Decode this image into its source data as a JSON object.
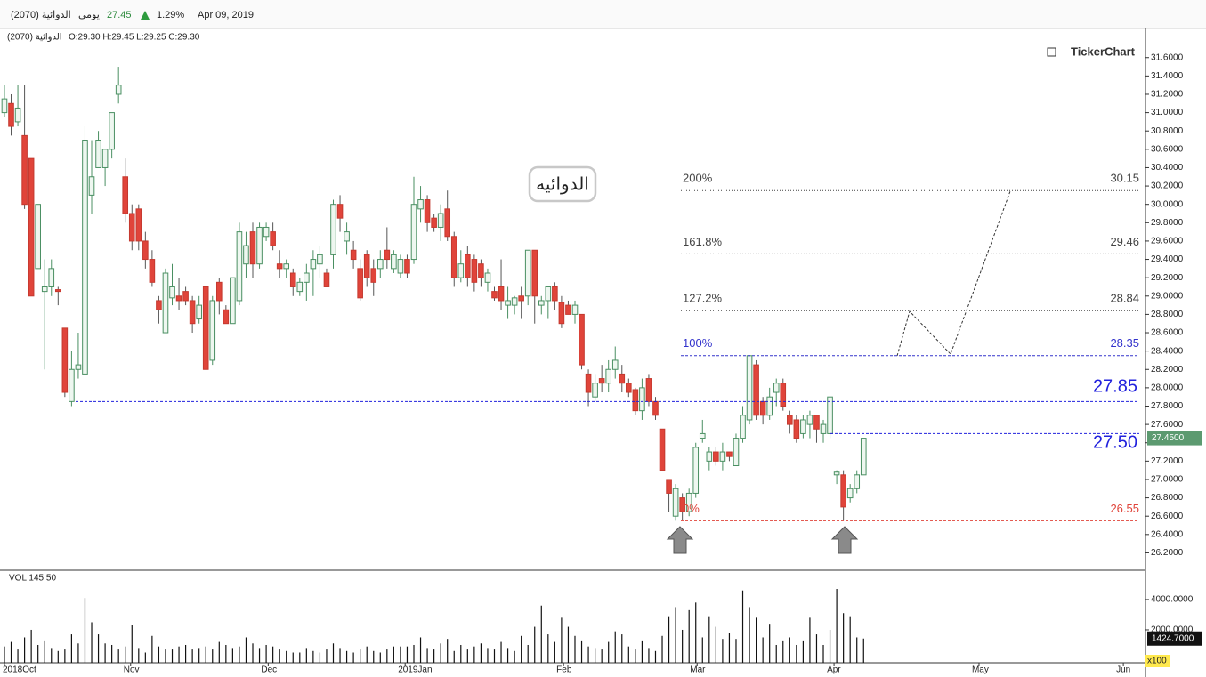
{
  "header": {
    "symbol": "الدوائية (2070)",
    "period": "يومي",
    "last": "27.45",
    "change": "1.29%",
    "date": "Apr 09, 2019"
  },
  "chart_data": {
    "type": "candlestick",
    "legend_name": "الدوائية (2070)",
    "legend_ohlc": "O:29.30 H:29.45 L:29.25 C:29.30",
    "brand": "TickerChart",
    "callout": "الدوائيه",
    "up_color": "#4a8f62",
    "down_color": "#e0443a",
    "xlim": [
      -0.66,
      170
    ],
    "xticks": [
      {
        "value": 0,
        "label": "2018Oct"
      },
      {
        "value": 18.8,
        "label": "Nov"
      },
      {
        "value": 39.3,
        "label": "Dec"
      },
      {
        "value": 59.7,
        "label": "2019Jan"
      },
      {
        "value": 83.3,
        "label": "Feb"
      },
      {
        "value": 103.2,
        "label": "Mar"
      },
      {
        "value": 123.6,
        "label": "Apr"
      },
      {
        "value": 145.2,
        "label": "May"
      },
      {
        "value": 166.7,
        "label": "Jun"
      }
    ],
    "ylim": [
      26.02,
      31.84
    ],
    "yticks": [
      {
        "value": 26.2,
        "label": "26.2000"
      },
      {
        "value": 26.4,
        "label": "26.4000"
      },
      {
        "value": 26.6,
        "label": "26.6000"
      },
      {
        "value": 26.8,
        "label": "26.8000"
      },
      {
        "value": 27.0,
        "label": "27.0000"
      },
      {
        "value": 27.2,
        "label": "27.2000"
      },
      {
        "value": 27.4,
        "label": "27.4000"
      },
      {
        "value": 27.6,
        "label": "27.6000"
      },
      {
        "value": 27.8,
        "label": "27.8000"
      },
      {
        "value": 28.0,
        "label": "28.0000"
      },
      {
        "value": 28.2,
        "label": "28.2000"
      },
      {
        "value": 28.4,
        "label": "28.4000"
      },
      {
        "value": 28.6,
        "label": "28.6000"
      },
      {
        "value": 28.8,
        "label": "28.8000"
      },
      {
        "value": 29.0,
        "label": "29.0000"
      },
      {
        "value": 29.2,
        "label": "29.2000"
      },
      {
        "value": 29.4,
        "label": "29.4000"
      },
      {
        "value": 29.6,
        "label": "29.6000"
      },
      {
        "value": 29.8,
        "label": "29.8000"
      },
      {
        "value": 30.0,
        "label": "30.0000"
      },
      {
        "value": 30.2,
        "label": "30.2000"
      },
      {
        "value": 30.4,
        "label": "30.4000"
      },
      {
        "value": 30.6,
        "label": "30.6000"
      },
      {
        "value": 30.8,
        "label": "30.8000"
      },
      {
        "value": 31.0,
        "label": "31.0000"
      },
      {
        "value": 31.2,
        "label": "31.2000"
      },
      {
        "value": 31.4,
        "label": "31.4000"
      },
      {
        "value": 31.6,
        "label": "31.6000"
      }
    ],
    "last_price": {
      "value": 27.45,
      "label": "27.4500"
    },
    "ohlc": [
      [
        31.0,
        31.3,
        30.95,
        31.15
      ],
      [
        31.1,
        31.2,
        30.75,
        30.85
      ],
      [
        30.9,
        31.3,
        30.85,
        31.05
      ],
      [
        30.75,
        31.3,
        29.95,
        30.0
      ],
      [
        30.5,
        30.5,
        29.0,
        29.0
      ],
      [
        29.3,
        30.0,
        29.3,
        30.0
      ],
      [
        29.05,
        29.4,
        28.2,
        29.1
      ],
      [
        29.1,
        29.4,
        29.0,
        29.3
      ],
      [
        29.07,
        29.1,
        28.9,
        29.05
      ],
      [
        28.65,
        28.65,
        27.9,
        27.95
      ],
      [
        27.85,
        28.4,
        27.8,
        28.2
      ],
      [
        28.2,
        28.6,
        28.1,
        28.25
      ],
      [
        28.15,
        30.85,
        28.15,
        30.7
      ],
      [
        30.1,
        30.7,
        29.9,
        30.3
      ],
      [
        30.4,
        30.8,
        30.4,
        30.7
      ],
      [
        30.4,
        30.6,
        30.2,
        30.6
      ],
      [
        30.6,
        31.0,
        30.5,
        31.0
      ],
      [
        31.2,
        31.5,
        31.1,
        31.3
      ],
      [
        30.3,
        30.5,
        29.8,
        29.9
      ],
      [
        29.9,
        30.0,
        29.5,
        29.6
      ],
      [
        29.95,
        30.0,
        29.5,
        29.6
      ],
      [
        29.6,
        29.7,
        29.3,
        29.4
      ],
      [
        29.4,
        29.5,
        29.1,
        29.15
      ],
      [
        28.95,
        29.0,
        28.7,
        28.85
      ],
      [
        28.6,
        29.3,
        28.6,
        29.25
      ],
      [
        28.98,
        29.35,
        28.9,
        29.1
      ],
      [
        29.0,
        29.2,
        28.85,
        28.95
      ],
      [
        29.05,
        29.1,
        28.9,
        28.95
      ],
      [
        28.95,
        29.0,
        28.6,
        28.7
      ],
      [
        28.75,
        29.0,
        28.7,
        28.9
      ],
      [
        29.1,
        29.1,
        28.2,
        28.2
      ],
      [
        28.3,
        29.0,
        28.25,
        28.95
      ],
      [
        29.15,
        29.2,
        28.8,
        28.95
      ],
      [
        28.85,
        28.9,
        28.7,
        28.7
      ],
      [
        28.7,
        29.2,
        28.7,
        29.2
      ],
      [
        28.95,
        29.8,
        28.9,
        29.7
      ],
      [
        29.35,
        29.7,
        29.2,
        29.55
      ],
      [
        29.7,
        29.8,
        29.2,
        29.35
      ],
      [
        29.35,
        29.8,
        29.3,
        29.75
      ],
      [
        29.65,
        29.8,
        29.6,
        29.75
      ],
      [
        29.7,
        29.8,
        29.5,
        29.55
      ],
      [
        29.35,
        29.5,
        29.2,
        29.3
      ],
      [
        29.3,
        29.4,
        29.2,
        29.35
      ],
      [
        29.25,
        29.3,
        29.0,
        29.1
      ],
      [
        29.05,
        29.2,
        29.0,
        29.15
      ],
      [
        29.15,
        29.35,
        28.95,
        29.25
      ],
      [
        29.3,
        29.5,
        29.0,
        29.4
      ],
      [
        29.35,
        29.55,
        29.2,
        29.45
      ],
      [
        29.25,
        29.3,
        29.1,
        29.1
      ],
      [
        29.45,
        30.05,
        29.3,
        30.0
      ],
      [
        30.0,
        30.1,
        29.7,
        29.85
      ],
      [
        29.6,
        29.8,
        29.45,
        29.7
      ],
      [
        29.5,
        29.6,
        29.3,
        29.4
      ],
      [
        29.3,
        29.4,
        28.95,
        28.98
      ],
      [
        29.45,
        29.5,
        29.1,
        29.2
      ],
      [
        29.3,
        29.4,
        29.0,
        29.15
      ],
      [
        29.3,
        29.5,
        29.2,
        29.4
      ],
      [
        29.5,
        29.75,
        29.3,
        29.4
      ],
      [
        29.3,
        29.5,
        29.25,
        29.45
      ],
      [
        29.25,
        29.45,
        29.2,
        29.4
      ],
      [
        29.4,
        29.45,
        29.2,
        29.25
      ],
      [
        29.4,
        30.3,
        29.35,
        30.0
      ],
      [
        29.95,
        30.2,
        29.8,
        30.05
      ],
      [
        30.05,
        30.1,
        29.7,
        29.8
      ],
      [
        29.85,
        29.9,
        29.7,
        29.75
      ],
      [
        29.75,
        30.0,
        29.6,
        29.9
      ],
      [
        29.95,
        30.15,
        29.6,
        29.65
      ],
      [
        29.65,
        29.7,
        29.1,
        29.2
      ],
      [
        29.2,
        29.5,
        29.15,
        29.35
      ],
      [
        29.45,
        29.55,
        29.1,
        29.2
      ],
      [
        29.4,
        29.45,
        29.05,
        29.15
      ],
      [
        29.35,
        29.4,
        29.1,
        29.2
      ],
      [
        29.15,
        29.3,
        29.05,
        29.25
      ],
      [
        29.05,
        29.1,
        28.95,
        28.98
      ],
      [
        29.1,
        29.4,
        28.85,
        28.95
      ],
      [
        28.9,
        29.1,
        28.75,
        28.95
      ],
      [
        28.9,
        29.0,
        28.8,
        28.98
      ],
      [
        29.0,
        29.1,
        28.75,
        28.95
      ],
      [
        29.0,
        29.5,
        28.9,
        29.5
      ],
      [
        29.5,
        29.5,
        28.7,
        29.0
      ],
      [
        28.9,
        29.0,
        28.8,
        28.95
      ],
      [
        28.95,
        29.1,
        28.75,
        29.1
      ],
      [
        29.1,
        29.15,
        28.85,
        28.95
      ],
      [
        28.93,
        29.0,
        28.65,
        28.7
      ],
      [
        28.9,
        28.95,
        28.8,
        28.8
      ],
      [
        28.8,
        28.95,
        28.7,
        28.9
      ],
      [
        28.8,
        28.8,
        28.2,
        28.25
      ],
      [
        28.15,
        28.2,
        27.8,
        27.95
      ],
      [
        27.9,
        28.15,
        27.85,
        28.05
      ],
      [
        28.1,
        28.25,
        27.95,
        28.05
      ],
      [
        28.05,
        28.3,
        27.95,
        28.2
      ],
      [
        28.2,
        28.45,
        28.1,
        28.3
      ],
      [
        28.15,
        28.25,
        27.95,
        28.05
      ],
      [
        28.05,
        28.1,
        27.9,
        27.95
      ],
      [
        27.98,
        28.0,
        27.7,
        27.75
      ],
      [
        27.75,
        28.1,
        27.65,
        28.0
      ],
      [
        28.1,
        28.15,
        27.8,
        27.85
      ],
      [
        27.85,
        27.9,
        27.65,
        27.7
      ],
      [
        27.55,
        27.55,
        27.1,
        27.1
      ],
      [
        27.0,
        27.0,
        26.65,
        26.85
      ],
      [
        26.6,
        26.95,
        26.55,
        26.9
      ],
      [
        26.8,
        26.85,
        26.55,
        26.65
      ],
      [
        26.65,
        26.9,
        26.6,
        26.85
      ],
      [
        26.85,
        27.4,
        26.8,
        27.35
      ],
      [
        27.45,
        27.65,
        27.4,
        27.5
      ],
      [
        27.2,
        27.35,
        27.1,
        27.3
      ],
      [
        27.3,
        27.35,
        27.15,
        27.2
      ],
      [
        27.2,
        27.4,
        27.1,
        27.3
      ],
      [
        27.3,
        27.3,
        27.2,
        27.25
      ],
      [
        27.15,
        27.5,
        27.15,
        27.45
      ],
      [
        27.45,
        27.8,
        27.4,
        27.7
      ],
      [
        27.65,
        28.35,
        27.6,
        28.35
      ],
      [
        28.25,
        28.3,
        27.65,
        27.7
      ],
      [
        27.85,
        27.9,
        27.6,
        27.7
      ],
      [
        27.7,
        28.0,
        27.65,
        27.9
      ],
      [
        27.95,
        28.1,
        27.8,
        28.05
      ],
      [
        28.05,
        28.1,
        27.75,
        27.8
      ],
      [
        27.7,
        27.75,
        27.5,
        27.6
      ],
      [
        27.65,
        27.7,
        27.4,
        27.45
      ],
      [
        27.5,
        27.7,
        27.45,
        27.65
      ],
      [
        27.6,
        27.75,
        27.45,
        27.7
      ],
      [
        27.7,
        27.7,
        27.4,
        27.55
      ],
      [
        27.5,
        27.65,
        27.4,
        27.6
      ],
      [
        27.5,
        27.9,
        27.45,
        27.9
      ],
      [
        27.05,
        27.1,
        26.95,
        27.08
      ],
      [
        27.05,
        27.1,
        26.55,
        26.7
      ],
      [
        26.8,
        26.95,
        26.75,
        26.9
      ],
      [
        26.9,
        27.1,
        26.85,
        27.05
      ],
      [
        27.05,
        27.45,
        27.05,
        27.45
      ]
    ],
    "levels": [
      {
        "name": "200%",
        "value": 30.15,
        "color": "#444444"
      },
      {
        "name": "161.8%",
        "value": 29.46,
        "color": "#444444"
      },
      {
        "name": "127.2%",
        "value": 28.84,
        "color": "#444444"
      },
      {
        "name": "100%",
        "value": 28.35,
        "color": "#3333cc"
      },
      {
        "value": 27.85,
        "color": "#2222dd"
      },
      {
        "value": 27.5,
        "label": "27.50",
        "color": "#2222dd"
      },
      {
        "name": "0%",
        "value": 26.55,
        "color": "#e0443a"
      }
    ],
    "volume": {
      "name": "VOL 145.50",
      "unit": "x100",
      "ylim": [
        0,
        5700
      ],
      "yticks": [
        {
          "value": 2000,
          "label": "2000.0000"
        },
        {
          "value": 4000,
          "label": "4000.0000"
        }
      ],
      "last": {
        "value": 1424.7,
        "label": "1424.7000"
      },
      "values": [
        900,
        1200,
        700,
        1500,
        2000,
        1000,
        1300,
        800,
        600,
        700,
        1700,
        1100,
        4100,
        2500,
        1700,
        1100,
        1000,
        700,
        900,
        2300,
        800,
        500,
        1600,
        900,
        700,
        700,
        900,
        1000,
        700,
        800,
        900,
        700,
        1200,
        1000,
        800,
        900,
        1500,
        1100,
        800,
        1000,
        900,
        700,
        600,
        500,
        500,
        800,
        600,
        500,
        700,
        1100,
        800,
        600,
        500,
        700,
        900,
        600,
        500,
        700,
        900,
        900,
        900,
        1000,
        1500,
        800,
        700,
        1100,
        1400,
        600,
        1000,
        700,
        900,
        1100,
        800,
        700,
        1200,
        800,
        600,
        1600,
        1000,
        2200,
        3600,
        1700,
        1200,
        2800,
        2200,
        1600,
        1300,
        900,
        800,
        700,
        1200,
        1900,
        1700,
        900,
        700,
        1300,
        800,
        600,
        1600,
        2900,
        3500,
        2000,
        3300,
        3800,
        1500,
        2900,
        2200,
        1400,
        1800,
        1400,
        4600,
        3500,
        2800,
        1500,
        2400,
        1000,
        1300,
        1500,
        1000,
        1300,
        2800,
        1700,
        1000,
        2000,
        4700,
        3100,
        2900,
        1500,
        1424.7
      ]
    }
  }
}
